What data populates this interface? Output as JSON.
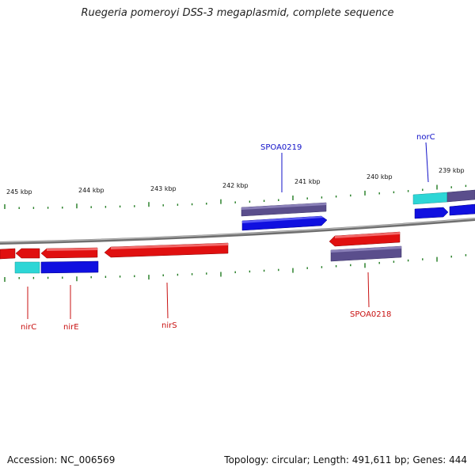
{
  "title": "Ruegeria pomeroyi DSS-3 megaplasmid, complete sequence",
  "footer": {
    "accession": "Accession: NC_006569",
    "summary": "Topology: circular; Length: 491,611 bp; Genes: 444"
  },
  "colors": {
    "backbone": "#808080",
    "tick": "#1f7a1f",
    "forward_cds": "#1010e0",
    "reverse_cds": "#e01010",
    "gene": "#5a4e8c",
    "rna": "#2dd6d6",
    "label_forward": "#1010c8",
    "label_reverse": "#c81010"
  },
  "scale_labels": [
    "245 kbp",
    "244 kbp",
    "243 kbp",
    "242 kbp",
    "241 kbp",
    "240 kbp",
    "239 kbp"
  ],
  "gene_labels": [
    {
      "name": "SPOA0219",
      "strand": "forward"
    },
    {
      "name": "norC",
      "strand": "forward"
    },
    {
      "name": "nirC",
      "strand": "reverse"
    },
    {
      "name": "nirE",
      "strand": "reverse"
    },
    {
      "name": "nirS",
      "strand": "reverse"
    },
    {
      "name": "SPOA0218",
      "strand": "reverse"
    }
  ]
}
